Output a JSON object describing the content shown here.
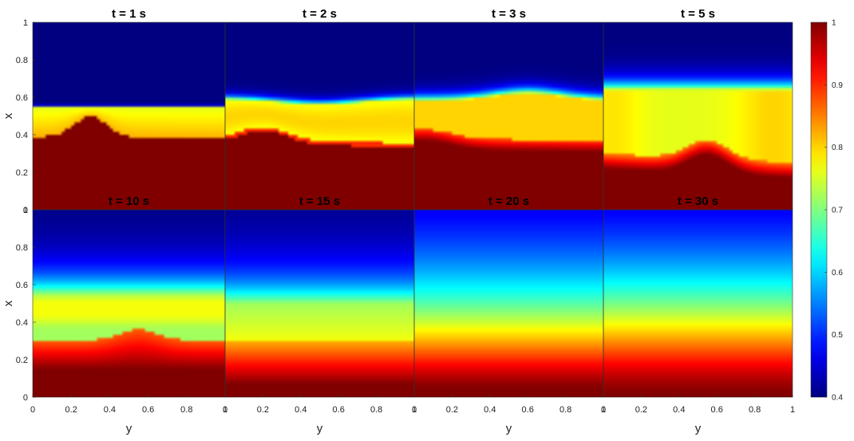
{
  "chart_data": {
    "type": "heatmap",
    "colormap": "jet",
    "clim": [
      0.4,
      1
    ],
    "colorbar": {
      "placement": "right",
      "ticks": [
        0.4,
        0.5,
        0.6,
        0.7,
        0.8,
        0.9,
        1
      ],
      "tick_labels": [
        "0.4",
        "0.5",
        "0.6",
        "0.7",
        "0.8",
        "0.9",
        "1"
      ]
    },
    "xlabel": "y",
    "ylabel": "x",
    "xlim": [
      0,
      1
    ],
    "ylim": [
      0,
      1
    ],
    "x_ticks": [
      0,
      0.2,
      0.4,
      0.6,
      0.8,
      1
    ],
    "x_tick_labels": [
      "0",
      "0.2",
      "0.4",
      "0.6",
      "0.8",
      "1"
    ],
    "y_ticks": [
      0,
      0.2,
      0.4,
      0.6,
      0.8,
      1
    ],
    "y_tick_labels": [
      "0",
      "0.2",
      "0.4",
      "0.6",
      "0.8",
      "1"
    ],
    "grid": false,
    "layout": "2x4",
    "panels": [
      {
        "title": "t = 1 s"
      },
      {
        "title": "t = 2 s"
      },
      {
        "title": "t = 3 s"
      },
      {
        "title": "t = 5 s"
      },
      {
        "title": "t = 10 s"
      },
      {
        "title": "t = 15 s"
      },
      {
        "title": "t = 20 s"
      },
      {
        "title": "t = 30 s"
      }
    ]
  }
}
